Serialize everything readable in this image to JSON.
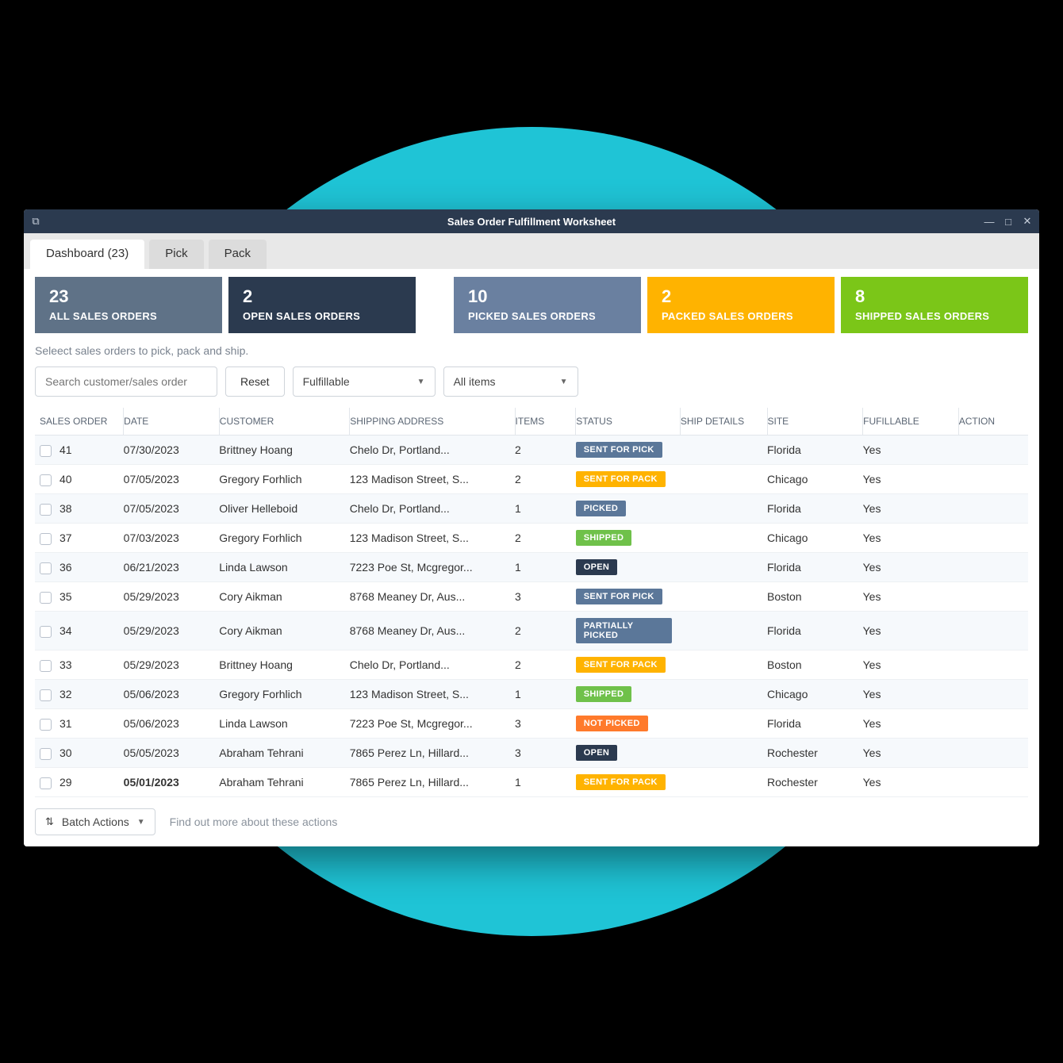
{
  "window": {
    "title": "Sales Order Fulfillment Worksheet"
  },
  "tabs": {
    "dashboard": {
      "label": "Dashboard",
      "count": "(23)"
    },
    "pick": {
      "label": "Pick"
    },
    "pack": {
      "label": "Pack"
    }
  },
  "summary": {
    "all": {
      "count": "23",
      "label": "ALL SALES ORDERS",
      "bg": "#5f7287"
    },
    "open": {
      "count": "2",
      "label": "OPEN SALES ORDERS",
      "bg": "#2b3a4f"
    },
    "spacer": true,
    "picked": {
      "count": "10",
      "label": "PICKED SALES ORDERS",
      "bg": "#6a80a0"
    },
    "packed": {
      "count": "2",
      "label": "PACKED SALES ORDERS",
      "bg": "#ffb300"
    },
    "shipped": {
      "count": "8",
      "label": "SHIPPED SALES ORDERS",
      "bg": "#7bc618"
    }
  },
  "instruction": "Seleect sales orders to pick, pack and ship.",
  "filters": {
    "search_placeholder": "Search customer/sales order",
    "reset": "Reset",
    "fulfillable": "Fulfillable",
    "all_items": "All items"
  },
  "table": {
    "columns": [
      "SALES ORDER",
      "DATE",
      "CUSTOMER",
      "SHIPPING ADDRESS",
      "ITEMS",
      "STATUS",
      "SHIP DETAILS",
      "SITE",
      "FUFILLABLE",
      "ACTION"
    ],
    "col_widths": [
      "90px",
      "110px",
      "150px",
      "190px",
      "70px",
      "120px",
      "100px",
      "110px",
      "110px",
      "80px"
    ]
  },
  "status_colors": {
    "SENT FOR PICK": "#5b7799",
    "SENT FOR PACK": "#ffb300",
    "PICKED": "#5b7799",
    "SHIPPED": "#6fc14a",
    "OPEN": "#2b3a4f",
    "PARTIALLY PICKED": "#5b7799",
    "NOT PICKED": "#ff7a2b"
  },
  "rows": [
    {
      "so": "41",
      "date": "07/30/2023",
      "customer": "Brittney Hoang",
      "addr": "Chelo Dr, Portland...",
      "items": "2",
      "status": "SENT FOR PICK",
      "ship": "",
      "site": "Florida",
      "fulfil": "Yes"
    },
    {
      "so": "40",
      "date": "07/05/2023",
      "customer": "Gregory Forhlich",
      "addr": "123 Madison Street, S...",
      "items": "2",
      "status": "SENT FOR PACK",
      "ship": "",
      "site": "Chicago",
      "fulfil": "Yes"
    },
    {
      "so": "38",
      "date": "07/05/2023",
      "customer": "Oliver Helleboid",
      "addr": "Chelo Dr, Portland...",
      "items": "1",
      "status": "PICKED",
      "ship": "",
      "site": "Florida",
      "fulfil": "Yes"
    },
    {
      "so": "37",
      "date": "07/03/2023",
      "customer": "Gregory Forhlich",
      "addr": "123 Madison Street, S...",
      "items": "2",
      "status": "SHIPPED",
      "ship": "",
      "site": "Chicago",
      "fulfil": "Yes"
    },
    {
      "so": "36",
      "date": "06/21/2023",
      "customer": "Linda Lawson",
      "addr": "7223 Poe St, Mcgregor...",
      "items": "1",
      "status": "OPEN",
      "ship": "",
      "site": "Florida",
      "fulfil": "Yes"
    },
    {
      "so": "35",
      "date": "05/29/2023",
      "customer": "Cory Aikman",
      "addr": "8768 Meaney Dr, Aus...",
      "items": "3",
      "status": "SENT FOR PICK",
      "ship": "",
      "site": "Boston",
      "fulfil": "Yes"
    },
    {
      "so": "34",
      "date": "05/29/2023",
      "customer": "Cory Aikman",
      "addr": "8768 Meaney Dr, Aus...",
      "items": "2",
      "status": "PARTIALLY PICKED",
      "ship": "",
      "site": "Florida",
      "fulfil": "Yes"
    },
    {
      "so": "33",
      "date": "05/29/2023",
      "customer": "Brittney Hoang",
      "addr": "Chelo Dr, Portland...",
      "items": "2",
      "status": "SENT FOR PACK",
      "ship": "",
      "site": "Boston",
      "fulfil": "Yes"
    },
    {
      "so": "32",
      "date": "05/06/2023",
      "customer": "Gregory Forhlich",
      "addr": "123 Madison Street, S...",
      "items": "1",
      "status": "SHIPPED",
      "ship": "",
      "site": "Chicago",
      "fulfil": "Yes"
    },
    {
      "so": "31",
      "date": "05/06/2023",
      "customer": "Linda Lawson",
      "addr": "7223 Poe St, Mcgregor...",
      "items": "3",
      "status": "NOT PICKED",
      "ship": "",
      "site": "Florida",
      "fulfil": "Yes"
    },
    {
      "so": "30",
      "date": "05/05/2023",
      "customer": "Abraham Tehrani",
      "addr": "7865 Perez Ln, Hillard...",
      "items": "3",
      "status": "OPEN",
      "ship": "",
      "site": "Rochester",
      "fulfil": "Yes"
    },
    {
      "so": "29",
      "date": "05/01/2023",
      "date_bold": true,
      "customer": "Abraham Tehrani",
      "addr": "7865 Perez Ln, Hillard...",
      "items": "1",
      "status": "SENT FOR PACK",
      "ship": "",
      "site": "Rochester",
      "fulfil": "Yes"
    }
  ],
  "footer": {
    "batch_actions": "Batch Actions",
    "hint": "Find out more about these actions"
  }
}
